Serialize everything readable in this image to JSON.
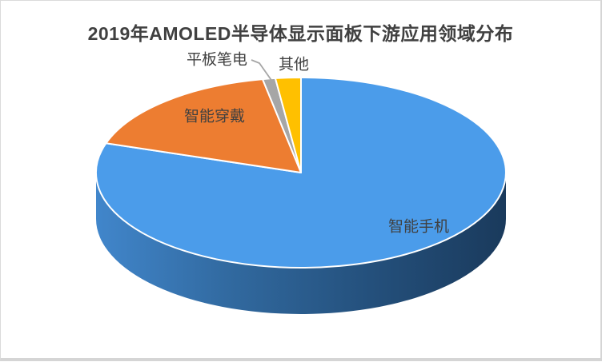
{
  "frame": {
    "background": "#FFFFFF",
    "border_color": "#D9D9D9"
  },
  "chart_data": {
    "type": "pie",
    "style": "3d-pie",
    "title": "2019年AMOLED半导体显示面板下游应用领域分布",
    "title_color": "#404040",
    "label_color": "#404040",
    "legend": "none",
    "start_angle_deg": 0,
    "direction": "clockwise",
    "values_unit": "share-of-total percent, estimated from slice angles (no numeric data labels shown)",
    "slices": [
      {
        "key": "smartphone",
        "label": "智能手机",
        "value": 80,
        "color": "#4B9CEA",
        "label_placement": "inside"
      },
      {
        "key": "wearable",
        "label": "智能穿戴",
        "value": 17,
        "color": "#ED7D31",
        "label_placement": "inside"
      },
      {
        "key": "tablet-laptop",
        "label": "平板笔电",
        "value": 1,
        "color": "#A6A6A6",
        "label_placement": "outside-with-leader-line"
      },
      {
        "key": "other",
        "label": "其他",
        "value": 2,
        "color": "#FFC000",
        "label_placement": "outside"
      }
    ],
    "side_gradient": [
      "#4186CB",
      "#31699F",
      "#24507C",
      "#1A3A5C"
    ],
    "leader_line_color": "#A6A6A6"
  }
}
